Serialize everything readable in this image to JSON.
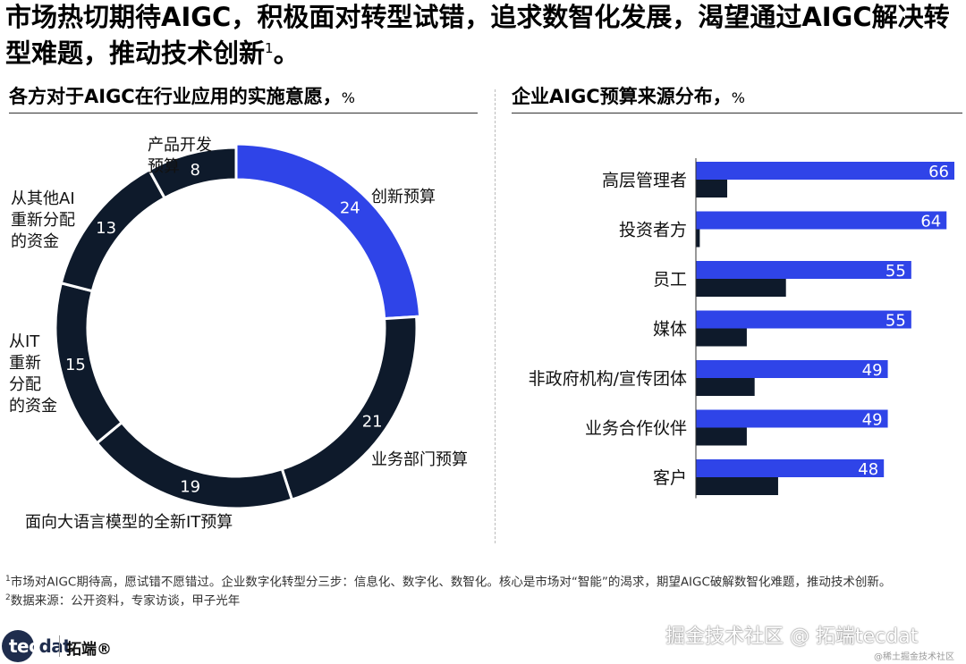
{
  "title": "市场热切期待AIGC，积极面对转型试错，追求数智化发展，渴望通过AIGC解决转型难题，推动技术创新",
  "title_sup": "1",
  "title_end": "。",
  "left_section": {
    "title": "各方对于AIGC在行业应用的实施意愿，",
    "unit": "%"
  },
  "right_section": {
    "title": "企业AIGC预算来源分布，",
    "unit": "%"
  },
  "colors": {
    "accent": "#2f44e8",
    "dark": "#0e1a2b"
  },
  "chart_data": [
    {
      "type": "pie",
      "title": "各方对于AIGC在行业应用的实施意愿，%",
      "slices": [
        {
          "label": "创新预算",
          "value": 24,
          "highlight": true
        },
        {
          "label": "业务部门预算",
          "value": 21
        },
        {
          "label": "面向大语言模型的全新IT预算",
          "value": 19
        },
        {
          "label": "从IT重新分配的资金",
          "value": 15
        },
        {
          "label": "从其他AI重新分配的资金",
          "value": 13
        },
        {
          "label": "产品开发预算",
          "value": 8
        }
      ]
    },
    {
      "type": "bar",
      "title": "企业AIGC预算来源分布，%",
      "orientation": "horizontal",
      "categories": [
        "高层管理者",
        "投资者方",
        "员工",
        "媒体",
        "非政府机构/宣传团体",
        "业务合作伙伴",
        "客户"
      ],
      "series": [
        {
          "values": [
            66,
            64,
            55,
            55,
            49,
            49,
            48
          ],
          "color": "#2f44e8"
        },
        {
          "values": [
            8,
            1,
            23,
            13,
            15,
            13,
            21
          ],
          "color": "#0e1a2b"
        }
      ],
      "xlim": [
        0,
        70
      ]
    }
  ],
  "footnotes": [
    {
      "sup": "1",
      "text": "市场对AIGC期待高，愿试错不愿错过。企业数字化转型分三步：信息化、数字化、数智化。核心是市场对“智能”的渴求，期望AIGC破解数智化难题，推动技术创新。"
    },
    {
      "sup": "2",
      "text": "数据来源：公开资料，专家访谈，甲子光年"
    }
  ],
  "logo": {
    "part1": "tec",
    "part2": "dat",
    "cn": "拓端®"
  },
  "watermark": "掘金技术社区 @ 拓端tecdat",
  "watermark_small": "@稀土掘金技术社区"
}
